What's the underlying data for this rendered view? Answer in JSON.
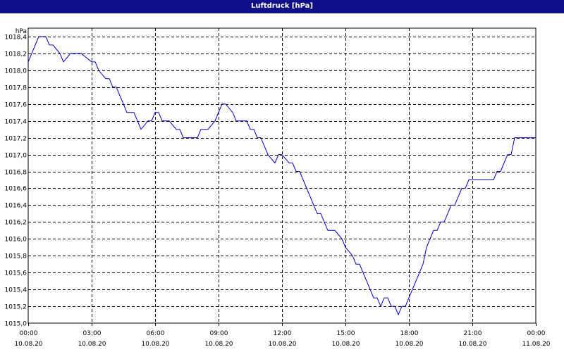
{
  "title": "Luftdruck [hPa]",
  "chart_data": {
    "type": "line",
    "title": "Luftdruck [hPa]",
    "ylabel": "hPa",
    "xlabel": "",
    "ylim": [
      1015.0,
      1018.5
    ],
    "y_ticks": [
      "1015,0",
      "1015,2",
      "1015,4",
      "1015,6",
      "1015,8",
      "1016,0",
      "1016,2",
      "1016,4",
      "1016,6",
      "1016,8",
      "1017,0",
      "1017,2",
      "1017,4",
      "1017,6",
      "1017,8",
      "1018,0",
      "1018,2",
      "1018,4"
    ],
    "y_tick_values": [
      1015.0,
      1015.2,
      1015.4,
      1015.6,
      1015.8,
      1016.0,
      1016.2,
      1016.4,
      1016.6,
      1016.8,
      1017.0,
      1017.2,
      1017.4,
      1017.6,
      1017.8,
      1018.0,
      1018.2,
      1018.4
    ],
    "x_ticks": [
      {
        "time": "00:00",
        "date": "10.08.20"
      },
      {
        "time": "03:00",
        "date": "10.08.20"
      },
      {
        "time": "06:00",
        "date": "10.08.20"
      },
      {
        "time": "09:00",
        "date": "10.08.20"
      },
      {
        "time": "12:00",
        "date": "10.08.20"
      },
      {
        "time": "15:00",
        "date": "10.08.20"
      },
      {
        "time": "18:00",
        "date": "10.08.20"
      },
      {
        "time": "21:00",
        "date": "10.08.20"
      },
      {
        "time": "00:00",
        "date": "11.08.20"
      }
    ],
    "grid": true,
    "series": [
      {
        "color": "#0000cc",
        "x": [
          "00:00",
          "00:20",
          "00:30",
          "00:50",
          "01:00",
          "01:10",
          "01:30",
          "01:40",
          "02:00",
          "02:10",
          "02:20",
          "02:30",
          "03:00",
          "03:10",
          "03:20",
          "03:40",
          "03:50",
          "04:00",
          "04:10",
          "04:20",
          "04:30",
          "04:40",
          "05:00",
          "05:10",
          "05:20",
          "05:40",
          "05:50",
          "06:00",
          "06:10",
          "06:20",
          "06:30",
          "06:40",
          "07:00",
          "07:10",
          "07:20",
          "07:30",
          "07:40",
          "08:00",
          "08:10",
          "08:20",
          "08:30",
          "08:50",
          "09:00",
          "09:10",
          "09:20",
          "09:40",
          "09:50",
          "10:10",
          "10:20",
          "10:30",
          "10:40",
          "10:50",
          "11:00",
          "11:10",
          "11:20",
          "11:40",
          "11:50",
          "12:00",
          "12:20",
          "12:30",
          "12:40",
          "12:50",
          "13:00",
          "13:10",
          "13:20",
          "13:30",
          "13:40",
          "13:50",
          "14:00",
          "14:10",
          "14:20",
          "14:30",
          "14:50",
          "15:00",
          "15:20",
          "15:30",
          "15:40",
          "15:50",
          "16:00",
          "16:10",
          "16:20",
          "16:30",
          "16:40",
          "16:50",
          "17:00",
          "17:10",
          "17:20",
          "17:30",
          "17:40",
          "17:50",
          "18:00",
          "18:10",
          "18:20",
          "18:30",
          "18:40",
          "18:50",
          "19:00",
          "19:10",
          "19:20",
          "19:30",
          "19:40",
          "19:50",
          "20:00",
          "20:10",
          "20:20",
          "20:30",
          "20:40",
          "20:50",
          "21:00",
          "21:10",
          "21:20",
          "21:30",
          "21:40",
          "21:50",
          "22:00",
          "22:10",
          "22:20",
          "22:30",
          "22:40",
          "22:50",
          "23:00",
          "23:10",
          "23:20",
          "23:30",
          "23:40",
          "23:50",
          "24:00"
        ],
        "y": [
          1018.1,
          1018.3,
          1018.4,
          1018.4,
          1018.3,
          1018.3,
          1018.2,
          1018.1,
          1018.2,
          1018.2,
          1018.2,
          1018.2,
          1018.1,
          1018.1,
          1018.0,
          1017.9,
          1017.9,
          1017.8,
          1017.8,
          1017.7,
          1017.6,
          1017.5,
          1017.5,
          1017.4,
          1017.3,
          1017.4,
          1017.4,
          1017.5,
          1017.5,
          1017.4,
          1017.4,
          1017.4,
          1017.3,
          1017.3,
          1017.2,
          1017.2,
          1017.2,
          1017.2,
          1017.3,
          1017.3,
          1017.3,
          1017.4,
          1017.5,
          1017.6,
          1017.6,
          1017.5,
          1017.4,
          1017.4,
          1017.4,
          1017.3,
          1017.3,
          1017.2,
          1017.2,
          1017.1,
          1017.0,
          1016.9,
          1017.0,
          1017.0,
          1016.9,
          1016.9,
          1016.8,
          1016.8,
          1016.7,
          1016.6,
          1016.5,
          1016.4,
          1016.3,
          1016.3,
          1016.2,
          1016.1,
          1016.1,
          1016.1,
          1016.0,
          1015.9,
          1015.8,
          1015.7,
          1015.7,
          1015.6,
          1015.5,
          1015.4,
          1015.3,
          1015.3,
          1015.2,
          1015.3,
          1015.3,
          1015.2,
          1015.2,
          1015.1,
          1015.2,
          1015.2,
          1015.3,
          1015.4,
          1015.5,
          1015.6,
          1015.7,
          1015.9,
          1016.0,
          1016.1,
          1016.1,
          1016.2,
          1016.2,
          1016.3,
          1016.4,
          1016.4,
          1016.5,
          1016.6,
          1016.6,
          1016.7,
          1016.7,
          1016.7,
          1016.7,
          1016.7,
          1016.7,
          1016.7,
          1016.7,
          1016.8,
          1016.8,
          1016.9,
          1017.0,
          1017.0,
          1017.2,
          1017.2,
          1017.2,
          1017.2,
          1017.2,
          1017.2,
          1017.2
        ]
      }
    ]
  }
}
